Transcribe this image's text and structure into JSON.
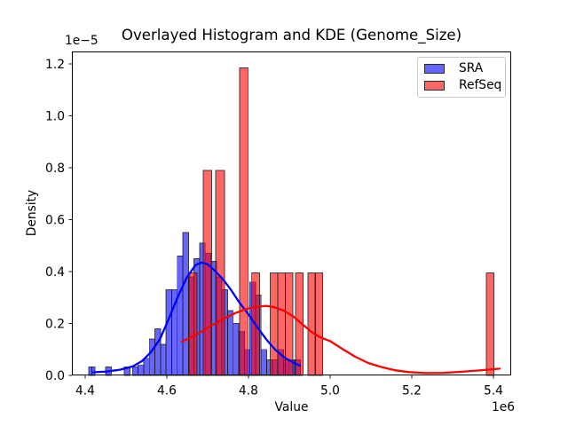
{
  "legend": {
    "position": "upper right",
    "items": [
      {
        "label": "SRA",
        "color": "#0000ff",
        "fill": "rgba(0,0,255,0.6)"
      },
      {
        "label": "RefSeq",
        "color": "#ff0000",
        "fill": "rgba(255,0,0,0.6)"
      }
    ]
  },
  "chart_data": {
    "type": "histogram+kde",
    "title": "Overlayed Histogram and KDE (Genome_Size)",
    "xlabel": "Value",
    "ylabel": "Density",
    "x_offset_label": "1e6",
    "y_offset_label": "1e−5",
    "x_unit_multiplier": 1000000,
    "y_unit_multiplier": 1e-05,
    "xlim": [
      4.3674,
      5.4435
    ],
    "ylim": [
      0,
      1.248
    ],
    "x_ticks": [
      4.4,
      4.6,
      4.8,
      5.0,
      5.2,
      5.4
    ],
    "x_tick_labels": [
      "4.4",
      "4.6",
      "4.8",
      "5.0",
      "5.2",
      "5.4"
    ],
    "y_ticks": [
      0,
      0.2,
      0.4,
      0.6,
      0.8,
      1.0,
      1.2
    ],
    "y_tick_labels": [
      "0.0",
      "0.2",
      "0.4",
      "0.6",
      "0.8",
      "1.0",
      "1.2"
    ],
    "grid": false,
    "legend_position": "upper right",
    "bars_format": "[x_left (1e6), bin_width (1e6), density_height (1e-5)] — estimated from pixels",
    "series": [
      {
        "name": "SRA",
        "type": "histogram",
        "color": "#0000ff",
        "alpha": 0.6,
        "bars": [
          [
            4.4087,
            0.0076,
            0.033
          ],
          [
            4.4163,
            0.0076,
            0.033
          ],
          [
            4.45,
            0.0137,
            0.033
          ],
          [
            4.496,
            0.0137,
            0.033
          ],
          [
            4.5159,
            0.0137,
            0.033
          ],
          [
            4.5296,
            0.0137,
            0.04
          ],
          [
            4.5433,
            0.0137,
            0.066
          ],
          [
            4.557,
            0.0137,
            0.14
          ],
          [
            4.5707,
            0.0137,
            0.18
          ],
          [
            4.5844,
            0.0137,
            0.12
          ],
          [
            4.5981,
            0.0137,
            0.33
          ],
          [
            4.6118,
            0.0137,
            0.33
          ],
          [
            4.6255,
            0.0137,
            0.46
          ],
          [
            4.6392,
            0.0137,
            0.55
          ],
          [
            4.6529,
            0.0137,
            0.38
          ],
          [
            4.6666,
            0.0137,
            0.45
          ],
          [
            4.6803,
            0.0137,
            0.51
          ],
          [
            4.694,
            0.0137,
            0.47
          ],
          [
            4.7077,
            0.0137,
            0.44
          ],
          [
            4.7214,
            0.0137,
            0.38
          ],
          [
            4.7351,
            0.0137,
            0.33
          ],
          [
            4.7488,
            0.0137,
            0.25
          ],
          [
            4.7625,
            0.0137,
            0.2
          ],
          [
            4.7762,
            0.0137,
            0.17
          ],
          [
            4.7899,
            0.0137,
            0.1
          ],
          [
            4.8036,
            0.0137,
            0.36
          ],
          [
            4.8173,
            0.0137,
            0.31
          ],
          [
            4.831,
            0.0137,
            0.1
          ],
          [
            4.8447,
            0.0137,
            0.06
          ],
          [
            4.8584,
            0.0137,
            0.06
          ],
          [
            4.8721,
            0.0137,
            0.1
          ],
          [
            4.8858,
            0.0137,
            0.06
          ],
          [
            4.8995,
            0.0137,
            0.06
          ],
          [
            4.9132,
            0.0137,
            0.06
          ]
        ]
      },
      {
        "name": "RefSeq",
        "type": "histogram",
        "color": "#ff0000",
        "alpha": 0.6,
        "bars": [
          [
            4.654,
            0.0195,
            0.395
          ],
          [
            4.689,
            0.021,
            0.79
          ],
          [
            4.72,
            0.021,
            0.79
          ],
          [
            4.778,
            0.0215,
            1.185
          ],
          [
            4.807,
            0.0205,
            0.395
          ],
          [
            4.853,
            0.0185,
            0.395
          ],
          [
            4.8715,
            0.0185,
            0.395
          ],
          [
            4.89,
            0.0185,
            0.395
          ],
          [
            4.915,
            0.0185,
            0.395
          ],
          [
            4.946,
            0.0175,
            0.395
          ],
          [
            4.964,
            0.0175,
            0.395
          ],
          [
            5.383,
            0.0185,
            0.395
          ]
        ]
      },
      {
        "name": "SRA",
        "type": "kde",
        "color": "#0000ff",
        "points": [
          [
            4.42,
            0.012
          ],
          [
            4.452,
            0.015
          ],
          [
            4.485,
            0.022
          ],
          [
            4.517,
            0.035
          ],
          [
            4.539,
            0.055
          ],
          [
            4.561,
            0.09
          ],
          [
            4.583,
            0.14
          ],
          [
            4.604,
            0.215
          ],
          [
            4.626,
            0.3
          ],
          [
            4.648,
            0.375
          ],
          [
            4.67,
            0.425
          ],
          [
            4.685,
            0.435
          ],
          [
            4.7,
            0.428
          ],
          [
            4.713,
            0.41
          ],
          [
            4.735,
            0.375
          ],
          [
            4.757,
            0.33
          ],
          [
            4.778,
            0.28
          ],
          [
            4.8,
            0.235
          ],
          [
            4.822,
            0.185
          ],
          [
            4.843,
            0.14
          ],
          [
            4.865,
            0.1
          ],
          [
            4.887,
            0.07
          ],
          [
            4.909,
            0.05
          ],
          [
            4.926,
            0.038
          ]
        ]
      },
      {
        "name": "RefSeq",
        "type": "kde",
        "color": "#ff0000",
        "points": [
          [
            4.637,
            0.13
          ],
          [
            4.67,
            0.155
          ],
          [
            4.702,
            0.185
          ],
          [
            4.735,
            0.215
          ],
          [
            4.767,
            0.24
          ],
          [
            4.8,
            0.258
          ],
          [
            4.822,
            0.265
          ],
          [
            4.843,
            0.268
          ],
          [
            4.865,
            0.262
          ],
          [
            4.887,
            0.249
          ],
          [
            4.909,
            0.228
          ],
          [
            4.93,
            0.2
          ],
          [
            4.952,
            0.17
          ],
          [
            4.974,
            0.148
          ],
          [
            5.0,
            0.132
          ],
          [
            5.028,
            0.104
          ],
          [
            5.061,
            0.072
          ],
          [
            5.093,
            0.048
          ],
          [
            5.126,
            0.032
          ],
          [
            5.159,
            0.02
          ],
          [
            5.191,
            0.013
          ],
          [
            5.235,
            0.009
          ],
          [
            5.278,
            0.01
          ],
          [
            5.322,
            0.014
          ],
          [
            5.365,
            0.019
          ],
          [
            5.4,
            0.024
          ],
          [
            5.415,
            0.026
          ]
        ]
      }
    ]
  }
}
